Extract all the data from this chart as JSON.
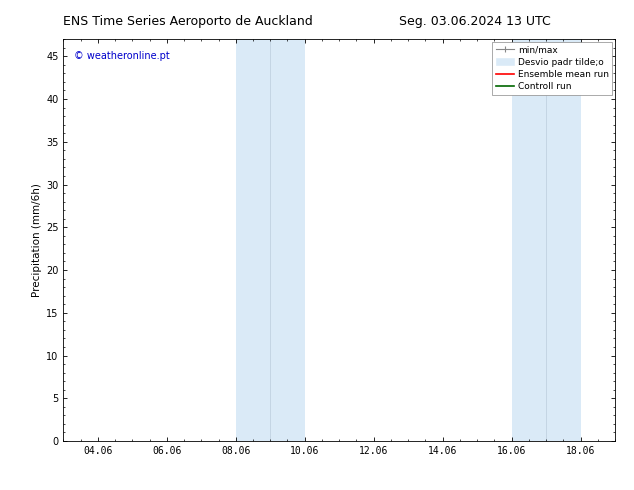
{
  "title_left": "ENS Time Series Aeroporto de Auckland",
  "title_right": "Seg. 03.06.2024 13 UTC",
  "ylabel": "Precipitation (mm/6h)",
  "watermark": "© weatheronline.pt",
  "watermark_color": "#0000cc",
  "xlim_left": -1,
  "xlim_right": 15,
  "ylim_bottom": 0,
  "ylim_top": 47,
  "xtick_positions": [
    0,
    2,
    4,
    6,
    8,
    10,
    12,
    14
  ],
  "xtick_labels": [
    "04.06",
    "06.06",
    "08.06",
    "10.06",
    "12.06",
    "14.06",
    "16.06",
    "18.06"
  ],
  "yticks": [
    0,
    5,
    10,
    15,
    20,
    25,
    30,
    35,
    40,
    45
  ],
  "shaded_regions": [
    {
      "xmin": 4.0,
      "xmax": 5.0,
      "color": "#daeaf7"
    },
    {
      "xmin": 5.0,
      "xmax": 6.0,
      "color": "#daeaf7"
    },
    {
      "xmin": 12.0,
      "xmax": 13.0,
      "color": "#daeaf7"
    },
    {
      "xmin": 13.0,
      "xmax": 14.0,
      "color": "#daeaf7"
    }
  ],
  "legend_entries": [
    {
      "label": "min/max",
      "color": "#aaaaaa"
    },
    {
      "label": "Desvio padr tilde;o",
      "color": "#daeaf7"
    },
    {
      "label": "Ensemble mean run",
      "color": "#ff0000"
    },
    {
      "label": "Controll run",
      "color": "#006600"
    }
  ],
  "bg_color": "#ffffff",
  "plot_bg_color": "#ffffff",
  "tick_fontsize": 7,
  "label_fontsize": 7.5,
  "title_fontsize": 9
}
